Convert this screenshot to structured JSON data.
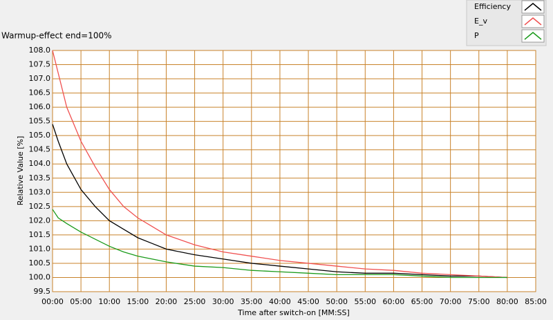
{
  "chart_data": {
    "type": "line",
    "title": "Warmup-effect end=100%",
    "x_label": "Time after switch-on [MM:SS]",
    "y_label": "Relative Value [%]",
    "x": [
      0,
      1,
      2.5,
      5,
      7.5,
      10,
      12.5,
      15,
      17.5,
      20,
      25,
      30,
      35,
      40,
      45,
      50,
      55,
      60,
      65,
      70,
      75,
      80
    ],
    "series": [
      {
        "name": "Efficiency",
        "color": "#000000",
        "values": [
          105.4,
          104.8,
          104.0,
          103.1,
          102.5,
          102.0,
          101.7,
          101.4,
          101.2,
          101.0,
          100.8,
          100.65,
          100.5,
          100.4,
          100.3,
          100.2,
          100.15,
          100.15,
          100.1,
          100.05,
          100.05,
          100.0
        ]
      },
      {
        "name": "E_v",
        "color": "#f05050",
        "values": [
          108.0,
          107.2,
          106.0,
          104.8,
          103.9,
          103.1,
          102.5,
          102.1,
          101.8,
          101.5,
          101.15,
          100.9,
          100.75,
          100.6,
          100.5,
          100.4,
          100.3,
          100.25,
          100.15,
          100.1,
          100.05,
          100.0
        ]
      },
      {
        "name": "P",
        "color": "#1a9a1a",
        "values": [
          102.4,
          102.1,
          101.9,
          101.6,
          101.35,
          101.1,
          100.9,
          100.75,
          100.65,
          100.55,
          100.4,
          100.35,
          100.25,
          100.2,
          100.15,
          100.1,
          100.1,
          100.1,
          100.05,
          100.0,
          100.0,
          100.0
        ]
      }
    ],
    "xlim": [
      0,
      85
    ],
    "xticks": [
      {
        "value": 0,
        "label": "00:00"
      },
      {
        "value": 5,
        "label": "05:00"
      },
      {
        "value": 10,
        "label": "10:00"
      },
      {
        "value": 15,
        "label": "15:00"
      },
      {
        "value": 20,
        "label": "20:00"
      },
      {
        "value": 25,
        "label": "25:00"
      },
      {
        "value": 30,
        "label": "30:00"
      },
      {
        "value": 35,
        "label": "35:00"
      },
      {
        "value": 40,
        "label": "40:00"
      },
      {
        "value": 45,
        "label": "45:00"
      },
      {
        "value": 50,
        "label": "50:00"
      },
      {
        "value": 55,
        "label": "55:00"
      },
      {
        "value": 60,
        "label": "60:00"
      },
      {
        "value": 65,
        "label": "65:00"
      },
      {
        "value": 70,
        "label": "70:00"
      },
      {
        "value": 75,
        "label": "75:00"
      },
      {
        "value": 80,
        "label": "80:00"
      },
      {
        "value": 85,
        "label": "85:00"
      }
    ],
    "ylim": [
      99.5,
      108
    ],
    "yticks": [
      99.5,
      {
        "value": 100,
        "label": "100.0"
      },
      100.5,
      {
        "value": 101,
        "label": "101.0"
      },
      101.5,
      {
        "value": 102,
        "label": "102.0"
      },
      102.5,
      {
        "value": 103,
        "label": "103.0"
      },
      103.5,
      {
        "value": 104,
        "label": "104.0"
      },
      104.5,
      {
        "value": 105,
        "label": "105.0"
      },
      105.5,
      {
        "value": 106,
        "label": "106.0"
      },
      106.5,
      {
        "value": 107,
        "label": "107.0"
      },
      107.5,
      {
        "value": 108,
        "label": "108.0"
      }
    ],
    "grid": true,
    "grid_color": "#c8822a",
    "legend": "top-right"
  }
}
